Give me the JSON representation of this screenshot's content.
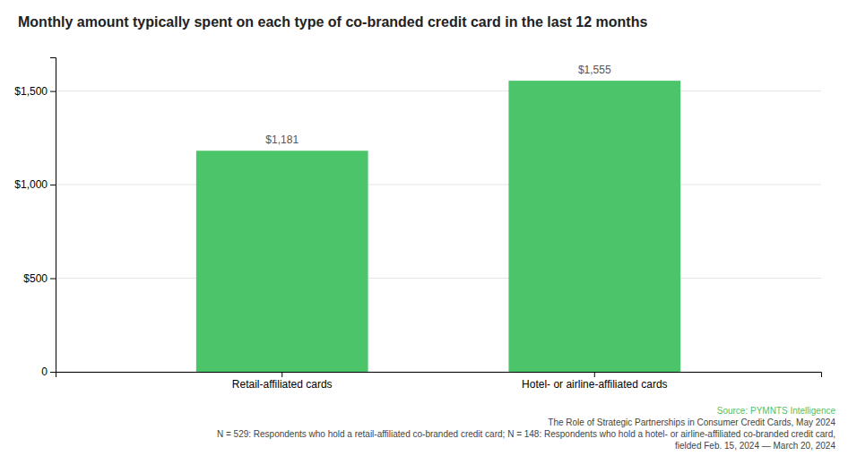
{
  "chart_data": {
    "type": "bar",
    "title": "Monthly amount typically spent on each type of co-branded credit card in the last 12 months",
    "categories": [
      "Retail-affiliated cards",
      "Hotel- or airline-affiliated cards"
    ],
    "values": [
      1181,
      1555
    ],
    "value_labels": [
      "$1,181",
      "$1,555"
    ],
    "data_labels": true,
    "color": "#4cc469",
    "ylim": [
      0,
      1680
    ],
    "yticks": [
      0,
      {
        "value": 500,
        "label": "$500"
      },
      {
        "value": 1000,
        "label": "$1,000"
      },
      {
        "value": 1500,
        "label": "$1,500"
      }
    ],
    "grid": true,
    "annotations": [
      {
        "text": "Source: PYMNTS Intelligence",
        "color": "#4cc469"
      },
      {
        "text": "The Role of Strategic Partnerships in Consumer Credit Cards, May 2024",
        "color": "#444444"
      },
      {
        "text": "N = 529: Respondents who hold a retail-affiliated co-branded credit card; N = 148: Respondents who hold a hotel- or airline-affiliated co-branded credit card,",
        "color": "#444444"
      },
      {
        "text": "fielded Feb. 15, 2024 — March 20, 2024",
        "color": "#444444"
      }
    ]
  }
}
